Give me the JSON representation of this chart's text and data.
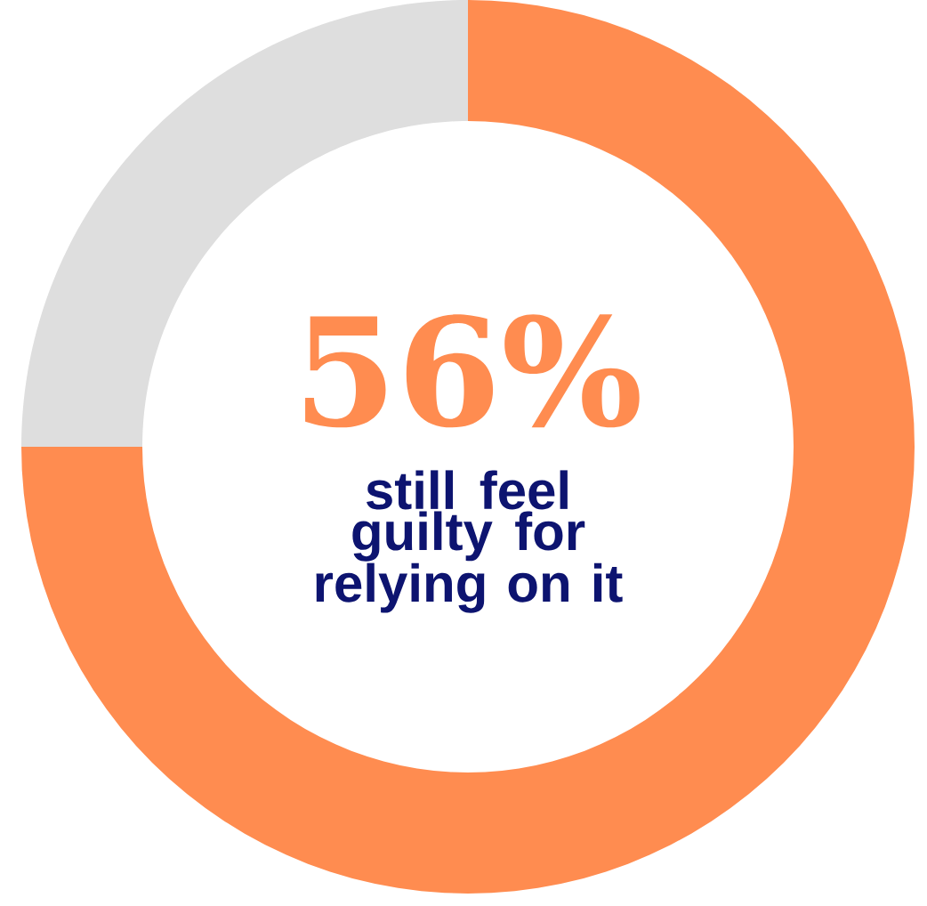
{
  "chart_data": {
    "type": "donut",
    "categories": [
      null,
      null
    ],
    "values": [
      75,
      25
    ],
    "colors": [
      "#ff8c50",
      "#dedede"
    ],
    "annotations": [
      "56%",
      "still feel guilty for relying on it"
    ]
  }
}
